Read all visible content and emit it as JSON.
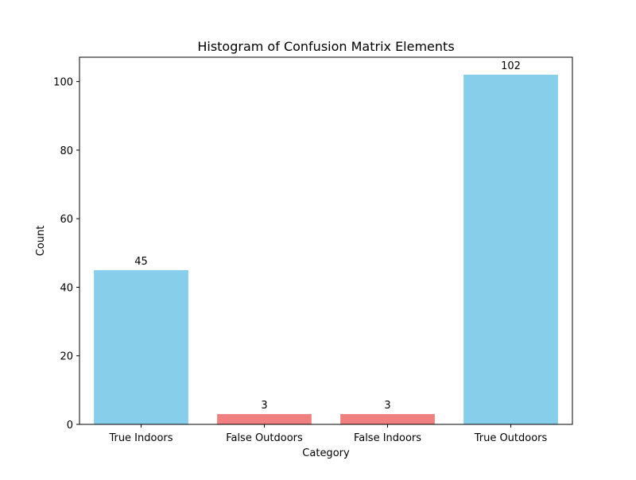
{
  "chart_data": {
    "type": "bar",
    "title": "Histogram of Confusion Matrix Elements",
    "xlabel": "Category",
    "ylabel": "Count",
    "categories": [
      "True Indoors",
      "False Outdoors",
      "False Indoors",
      "True Outdoors"
    ],
    "values": [
      45,
      3,
      3,
      102
    ],
    "data_labels": [
      "45",
      "3",
      "3",
      "102"
    ],
    "bar_colors": [
      "#87ceeb",
      "#f08080",
      "#f08080",
      "#87ceeb"
    ],
    "ylim": [
      0,
      107.1
    ],
    "yticks": [
      0,
      20,
      40,
      60,
      80,
      100
    ],
    "ytick_labels": [
      "0",
      "20",
      "40",
      "60",
      "80",
      "100"
    ],
    "grid": false,
    "legend": "none"
  }
}
